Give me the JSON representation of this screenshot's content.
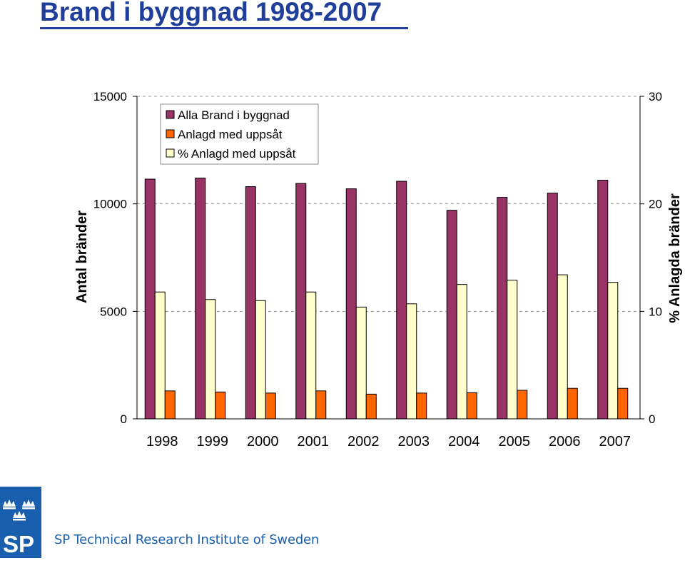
{
  "page": {
    "title": "Brand i byggnad 1998-2007",
    "title_color": "#1f3f9a",
    "brand_color": "#1a5fae"
  },
  "footer": {
    "org_name": "SP Technical Research Institute of Sweden",
    "logo_text": "SP",
    "logo_icon": "three-crowns-icon"
  },
  "chart_data": {
    "type": "bar",
    "categories": [
      "1998",
      "1999",
      "2000",
      "2001",
      "2002",
      "2003",
      "2004",
      "2005",
      "2006",
      "2007"
    ],
    "series": [
      {
        "name": "Alla Brand i byggnad",
        "axis": "left",
        "color": "#993366",
        "values": [
          11150,
          11200,
          10800,
          10950,
          10700,
          11050,
          9700,
          10300,
          10500,
          11100
        ]
      },
      {
        "name": "% Anlagd med uppsåt",
        "axis": "right",
        "color": "#ffffcc",
        "values": [
          11.8,
          11.1,
          11.0,
          11.8,
          10.4,
          10.7,
          12.5,
          12.9,
          13.4,
          12.7
        ]
      },
      {
        "name": "Anlagd med uppsåt",
        "axis": "left",
        "color": "#ff6600",
        "values": [
          1300,
          1250,
          1200,
          1300,
          1150,
          1200,
          1220,
          1330,
          1420,
          1420
        ]
      }
    ],
    "legend": [
      "Alla Brand i byggnad",
      "Anlagd med uppsåt",
      "% Anlagd med uppsåt"
    ],
    "ylabel": "Antal bränder",
    "y2label": "% Anlagda bränder",
    "ylim": [
      0,
      15000
    ],
    "y2lim": [
      0,
      30
    ],
    "yticks": [
      "0",
      "5000",
      "10000",
      "15000"
    ],
    "y2ticks": [
      "0",
      "10",
      "20",
      "30"
    ],
    "grid": true,
    "legend_position": "top-left"
  }
}
